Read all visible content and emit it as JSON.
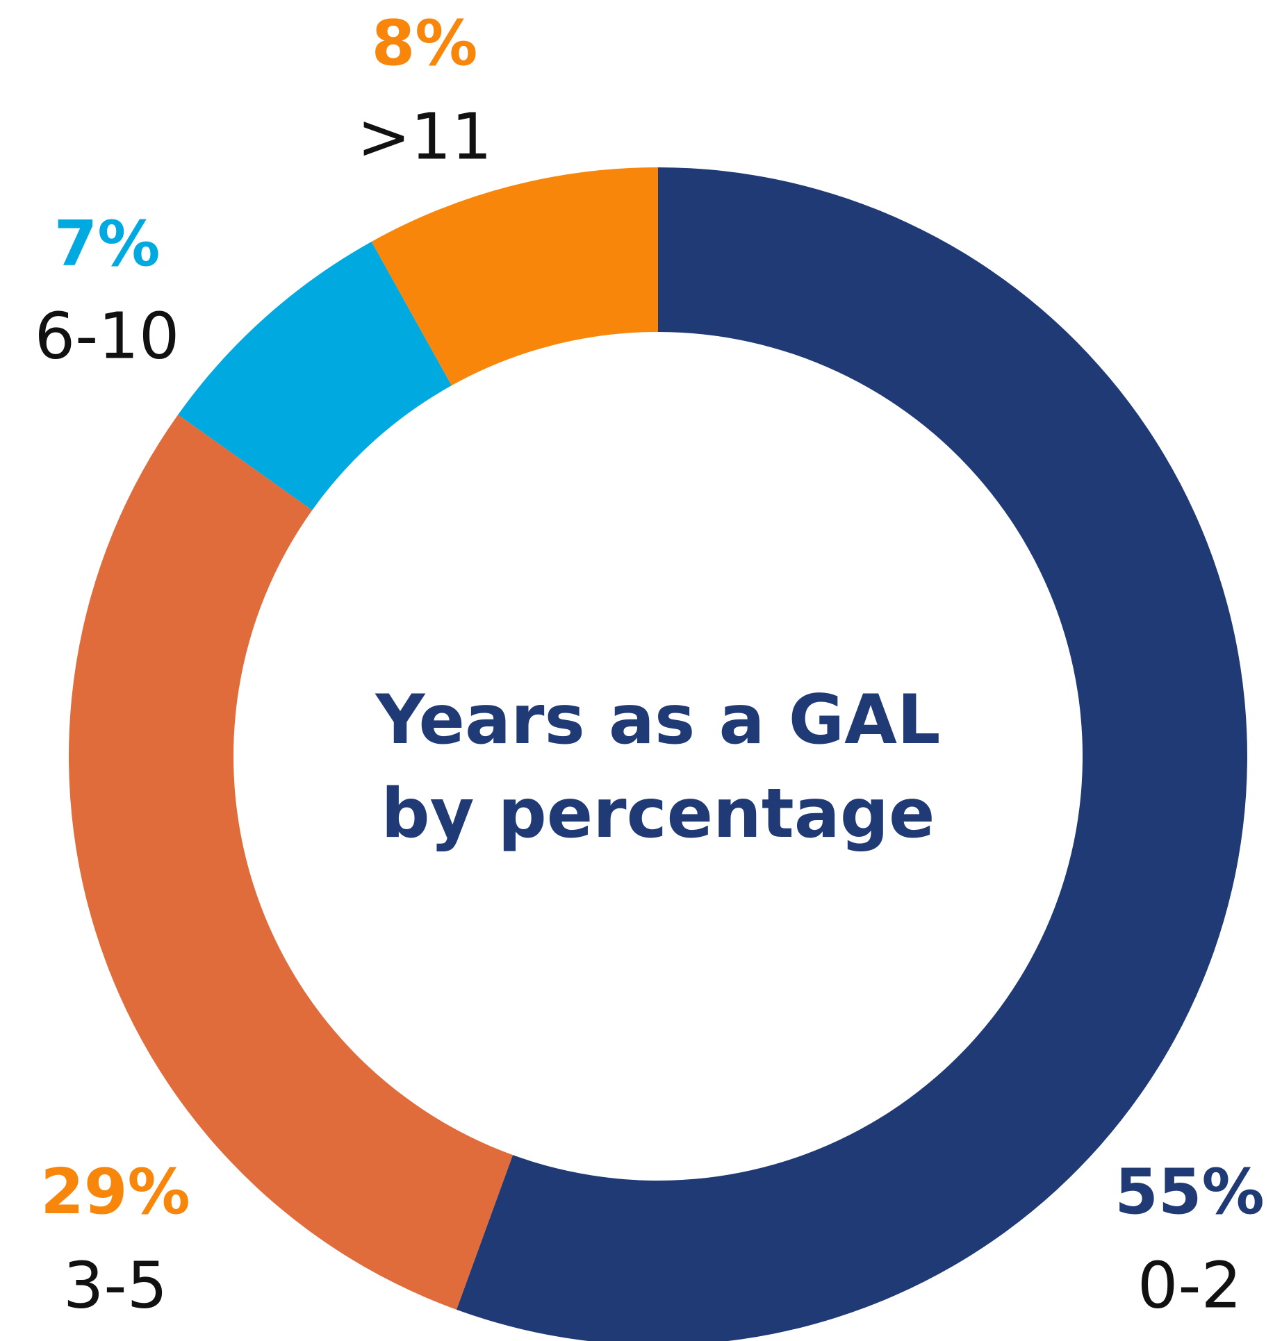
{
  "chart_data": {
    "type": "donut",
    "title": "Years as a GAL by percentage",
    "categories": [
      "0-2",
      "3-5",
      "6-10",
      ">11"
    ],
    "values": [
      55,
      29,
      7,
      8
    ],
    "value_labels": [
      "55%",
      "29%",
      "7%",
      "8%"
    ],
    "colors": [
      "#1f3a75",
      "#e06b3b",
      "#00a9e0",
      "#f7860b"
    ],
    "label_colors": [
      "#1f3a75",
      "#f7860b",
      "#00a9e0",
      "#f7860b"
    ]
  }
}
